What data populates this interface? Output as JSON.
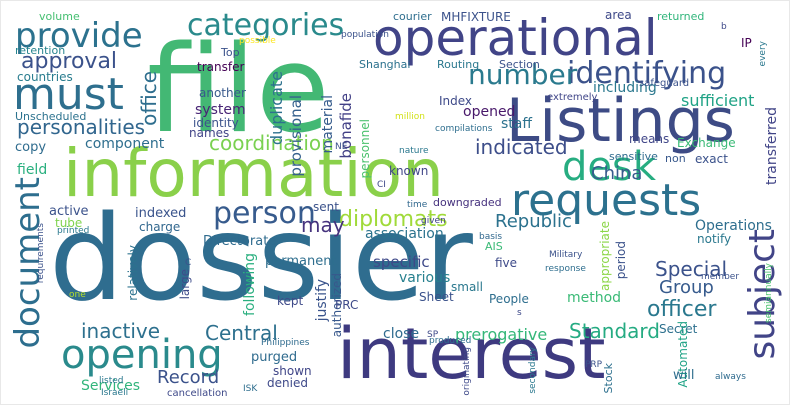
{
  "words": [
    {
      "text": "dossier",
      "color": "#2f6d8f"
    },
    {
      "text": "interest",
      "color": "#3e3a80"
    },
    {
      "text": "file",
      "color": "#43b874"
    },
    {
      "text": "information",
      "color": "#8ad04a"
    },
    {
      "text": "operational",
      "color": "#414487"
    },
    {
      "text": "Listings",
      "color": "#3d4b85"
    },
    {
      "text": "requests",
      "color": "#2c718e"
    },
    {
      "text": "opening",
      "color": "#2a8a8c"
    },
    {
      "text": "desk",
      "color": "#27ad81"
    },
    {
      "text": "must",
      "color": "#2e6f8e"
    },
    {
      "text": "provide",
      "color": "#2c728e"
    },
    {
      "text": "categories",
      "color": "#2a8a8c"
    },
    {
      "text": "identifying",
      "color": "#3b528b"
    },
    {
      "text": "document",
      "color": "#2d6e8e"
    },
    {
      "text": "subject",
      "color": "#414487"
    },
    {
      "text": "person",
      "color": "#375b8d"
    },
    {
      "text": "number",
      "color": "#2a7a8e"
    },
    {
      "text": "approval",
      "color": "#3b528b"
    },
    {
      "text": "personalities",
      "color": "#31668e"
    },
    {
      "text": "diplomats",
      "color": "#a0da39"
    },
    {
      "text": "coordination",
      "color": "#7ad151"
    },
    {
      "text": "Special",
      "color": "#3b528b"
    },
    {
      "text": "indicated",
      "color": "#3d4e8a"
    },
    {
      "text": "inactive",
      "color": "#2d708e"
    },
    {
      "text": "Central",
      "color": "#2d708e"
    },
    {
      "text": "Standard",
      "color": "#25ab82"
    },
    {
      "text": "officer",
      "color": "#2a788e"
    },
    {
      "text": "Group",
      "color": "#375b8d"
    },
    {
      "text": "Republic",
      "color": "#2c728e"
    },
    {
      "text": "China",
      "color": "#375b8d"
    },
    {
      "text": "Record",
      "color": "#3b528b"
    },
    {
      "text": "may",
      "color": "#46337e"
    },
    {
      "text": "office",
      "color": "#2e6e8e"
    },
    {
      "text": "sufficient",
      "color": "#20a386"
    },
    {
      "text": "transferred",
      "color": "#414487"
    },
    {
      "text": "association",
      "color": "#2c738e"
    },
    {
      "text": "prerogative",
      "color": "#35b779"
    },
    {
      "text": "method",
      "color": "#3aba76"
    },
    {
      "text": "component",
      "color": "#2e6e8e"
    },
    {
      "text": "Operations",
      "color": "#2e6e8e"
    },
    {
      "text": "various",
      "color": "#27808e"
    },
    {
      "text": "specific",
      "color": "#3e4989"
    },
    {
      "text": "staff",
      "color": "#2c728e"
    },
    {
      "text": "opened",
      "color": "#48186a"
    },
    {
      "text": "including",
      "color": "#2a788e"
    },
    {
      "text": "system",
      "color": "#482475"
    },
    {
      "text": "another",
      "color": "#38598c"
    },
    {
      "text": "identity",
      "color": "#3b528b"
    },
    {
      "text": "names",
      "color": "#414487"
    },
    {
      "text": "provisional",
      "color": "#35608d"
    },
    {
      "text": "duplicate",
      "color": "#2d718e"
    },
    {
      "text": "material",
      "color": "#365c8d"
    },
    {
      "text": "bonafide",
      "color": "#424086"
    },
    {
      "text": "Index",
      "color": "#3e4a89"
    },
    {
      "text": "field",
      "color": "#2ab07f"
    },
    {
      "text": "active",
      "color": "#3b528b"
    },
    {
      "text": "tube",
      "color": "#7fd34e"
    },
    {
      "text": "copy",
      "color": "#2f6c8e"
    },
    {
      "text": "indexed",
      "color": "#3a548c"
    },
    {
      "text": "charge",
      "color": "#31678e"
    },
    {
      "text": "Directorate",
      "color": "#2f6b8e"
    },
    {
      "text": "sent",
      "color": "#3b528b"
    },
    {
      "text": "relatively",
      "color": "#2c728e"
    },
    {
      "text": "large",
      "color": "#3e4c8a"
    },
    {
      "text": "following",
      "color": "#29af7f"
    },
    {
      "text": "permanent",
      "color": "#2e6e8e"
    },
    {
      "text": "justify",
      "color": "#3a548c"
    },
    {
      "text": "authorized",
      "color": "#38588c"
    },
    {
      "text": "kept",
      "color": "#3e4a89"
    },
    {
      "text": "PRC",
      "color": "#3e4a89"
    },
    {
      "text": "purged",
      "color": "#2f6b8e"
    },
    {
      "text": "shown",
      "color": "#404688"
    },
    {
      "text": "denied",
      "color": "#3e4989"
    },
    {
      "text": "close",
      "color": "#2f6b8e"
    },
    {
      "text": "Services",
      "color": "#31b57b"
    },
    {
      "text": "Sheet",
      "color": "#3b528b"
    },
    {
      "text": "small",
      "color": "#2a788e"
    },
    {
      "text": "five",
      "color": "#3e4a89"
    },
    {
      "text": "People",
      "color": "#2e6e8e"
    },
    {
      "text": "Secret",
      "color": "#2d708e"
    },
    {
      "text": "appropriate",
      "color": "#8bd646"
    },
    {
      "text": "period",
      "color": "#3b528b"
    },
    {
      "text": "notify",
      "color": "#2a788e"
    },
    {
      "text": "Automated",
      "color": "#20a386"
    },
    {
      "text": "will",
      "color": "#2e6e8e"
    },
    {
      "text": "Stock",
      "color": "#2d708e"
    },
    {
      "text": "means",
      "color": "#404688"
    },
    {
      "text": "exact",
      "color": "#3b528b"
    },
    {
      "text": "Exchange",
      "color": "#3aba76"
    },
    {
      "text": "sensitive",
      "color": "#2f6b8e"
    },
    {
      "text": "non",
      "color": "#38588c"
    },
    {
      "text": "known",
      "color": "#404688"
    },
    {
      "text": "downgraded",
      "color": "#46327e"
    },
    {
      "text": "volume",
      "color": "#44bf70"
    },
    {
      "text": "courier",
      "color": "#2e6e8e"
    },
    {
      "text": "MHFIXTURE",
      "color": "#3b528b"
    },
    {
      "text": "area",
      "color": "#3e4989"
    },
    {
      "text": "returned",
      "color": "#31b57b"
    },
    {
      "text": "retention",
      "color": "#25848e"
    },
    {
      "text": "countries",
      "color": "#287c8e"
    },
    {
      "text": "Unscheduled",
      "color": "#2c728e"
    },
    {
      "text": "Top",
      "color": "#3b528b"
    },
    {
      "text": "transfer",
      "color": "#440154"
    },
    {
      "text": "Shanghai",
      "color": "#2c728e"
    },
    {
      "text": "Routing",
      "color": "#2a788e"
    },
    {
      "text": "Section",
      "color": "#3b528b"
    },
    {
      "text": "personnel",
      "color": "#4ac16d"
    },
    {
      "text": "population",
      "color": "#3b528b"
    },
    {
      "text": "possible",
      "color": "#fde725"
    },
    {
      "text": "extremely",
      "color": "#404688"
    },
    {
      "text": "safeguard",
      "color": "#3b528b"
    },
    {
      "text": "IP",
      "color": "#440154"
    },
    {
      "text": "every",
      "color": "#2a788e"
    },
    {
      "text": "million",
      "color": "#d2e21b"
    },
    {
      "text": "compilations",
      "color": "#2e6e8e"
    },
    {
      "text": "NE",
      "color": "#3b528b"
    },
    {
      "text": "nature",
      "color": "#2a788e"
    },
    {
      "text": "CI",
      "color": "#3e4989"
    },
    {
      "text": "time",
      "color": "#31688e"
    },
    {
      "text": "given",
      "color": "#414487"
    },
    {
      "text": "basis",
      "color": "#31688e"
    },
    {
      "text": "AIS",
      "color": "#3aba76"
    },
    {
      "text": "Military",
      "color": "#3b528b"
    },
    {
      "text": "response",
      "color": "#2e6e8e"
    },
    {
      "text": "member",
      "color": "#3b528b"
    },
    {
      "text": "semiannually",
      "color": "#4ac16d"
    },
    {
      "text": "requirements",
      "color": "#3b528b"
    },
    {
      "text": "printed",
      "color": "#2a788e"
    },
    {
      "text": "one",
      "color": "#b5de2b"
    },
    {
      "text": "Philippines",
      "color": "#2f6b8e"
    },
    {
      "text": "originating",
      "color": "#3e4989"
    },
    {
      "text": "secondary",
      "color": "#2a788e"
    },
    {
      "text": "produced",
      "color": "#2e6e8e"
    },
    {
      "text": "SP",
      "color": "#3e4989"
    },
    {
      "text": "PRP",
      "color": "#3b528b"
    },
    {
      "text": "ISK",
      "color": "#2e6e8e"
    },
    {
      "text": "cancellation",
      "color": "#3e4989"
    },
    {
      "text": "listed",
      "color": "#2a788e"
    },
    {
      "text": "always",
      "color": "#2f6b8e"
    },
    {
      "text": "Israeli",
      "color": "#2a788e"
    },
    {
      "text": "s",
      "color": "#3e4989"
    },
    {
      "text": "C",
      "color": "#3b528b"
    },
    {
      "text": "b",
      "color": "#3e4989"
    }
  ]
}
